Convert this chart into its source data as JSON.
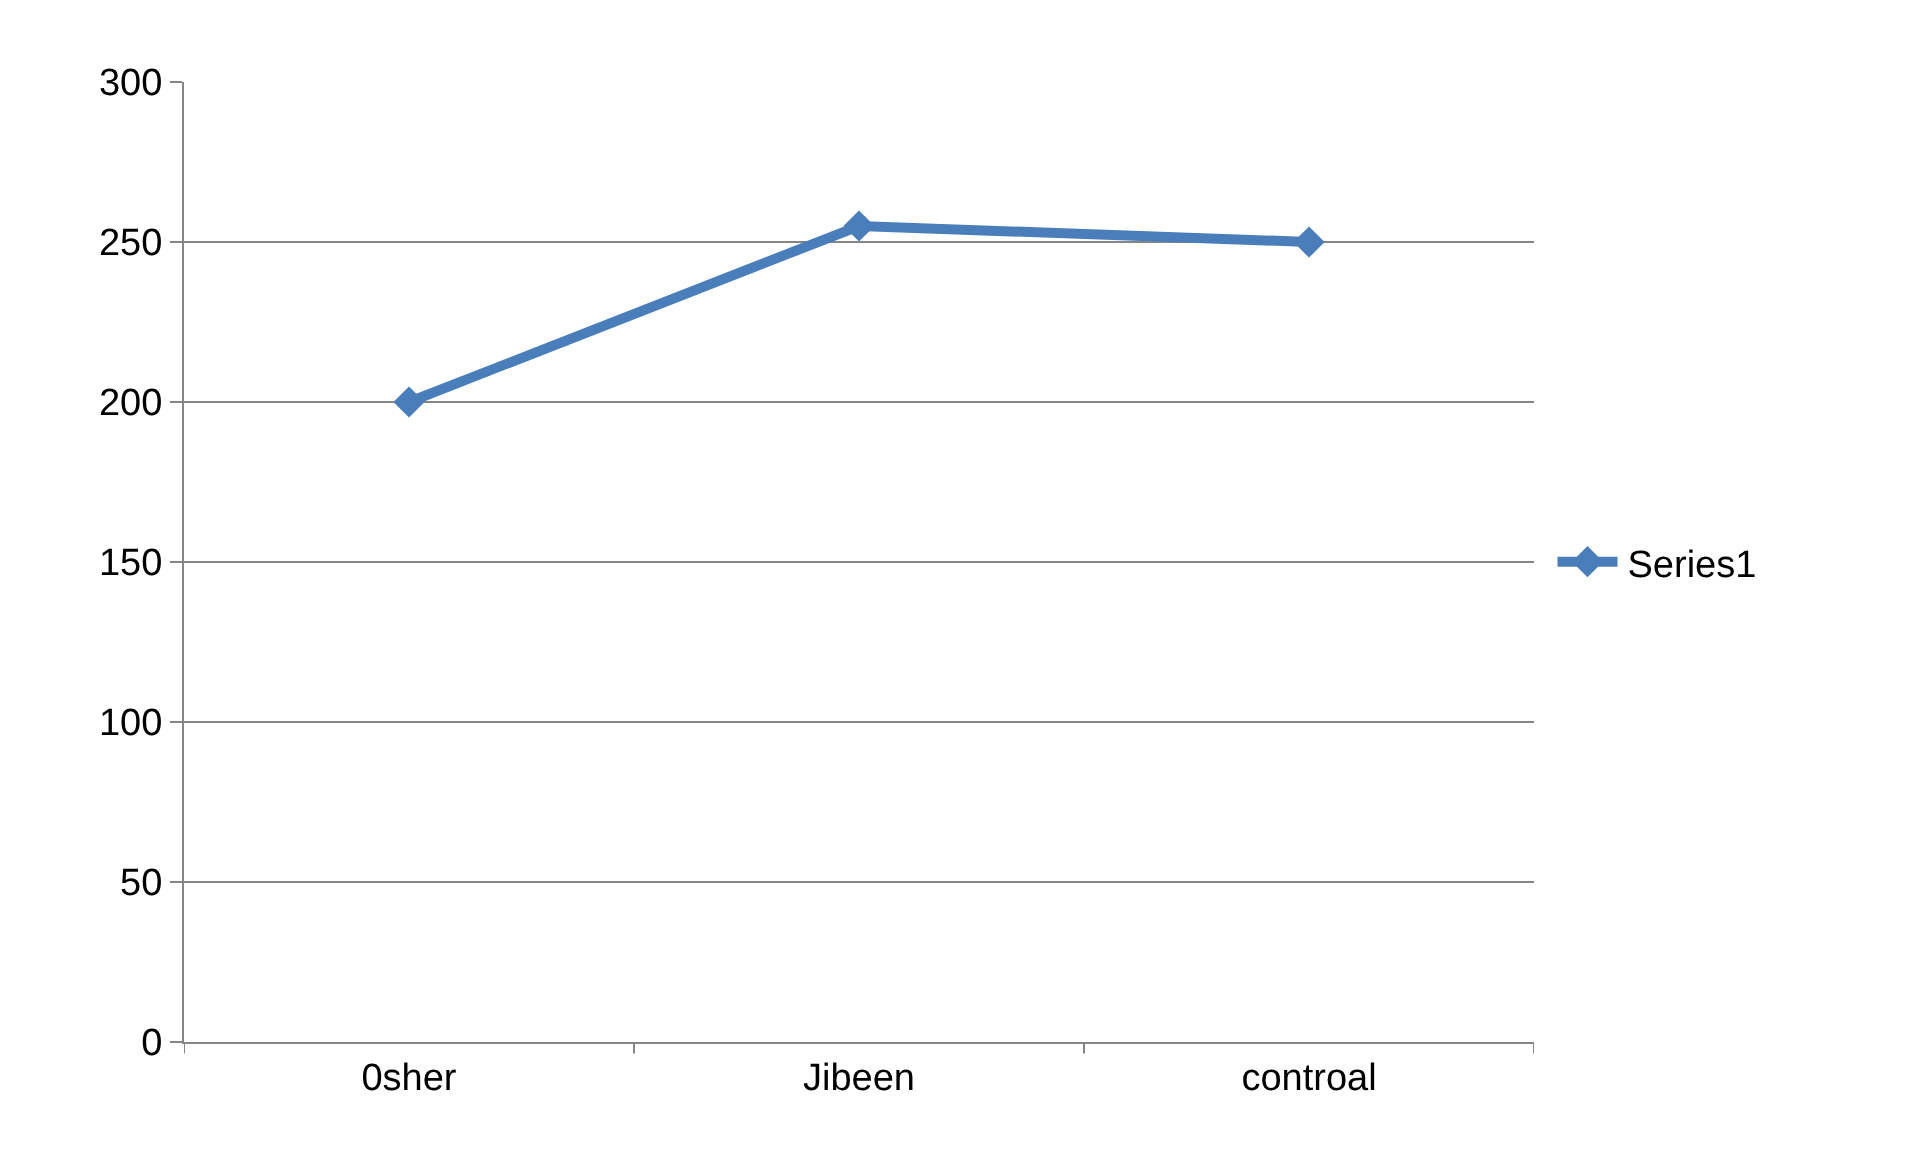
{
  "chart_data": {
    "type": "line",
    "categories": [
      "0sher",
      "Jibeen",
      "controal"
    ],
    "series": [
      {
        "name": "Series1",
        "color": "#4a7ebb",
        "values": [
          200,
          255,
          250
        ]
      }
    ],
    "ylim": [
      0,
      300
    ],
    "yticks": [
      0,
      50,
      100,
      150,
      200,
      250,
      300
    ],
    "grid": "y",
    "legend": "right",
    "marker": "diamond",
    "line_style": "solid"
  }
}
